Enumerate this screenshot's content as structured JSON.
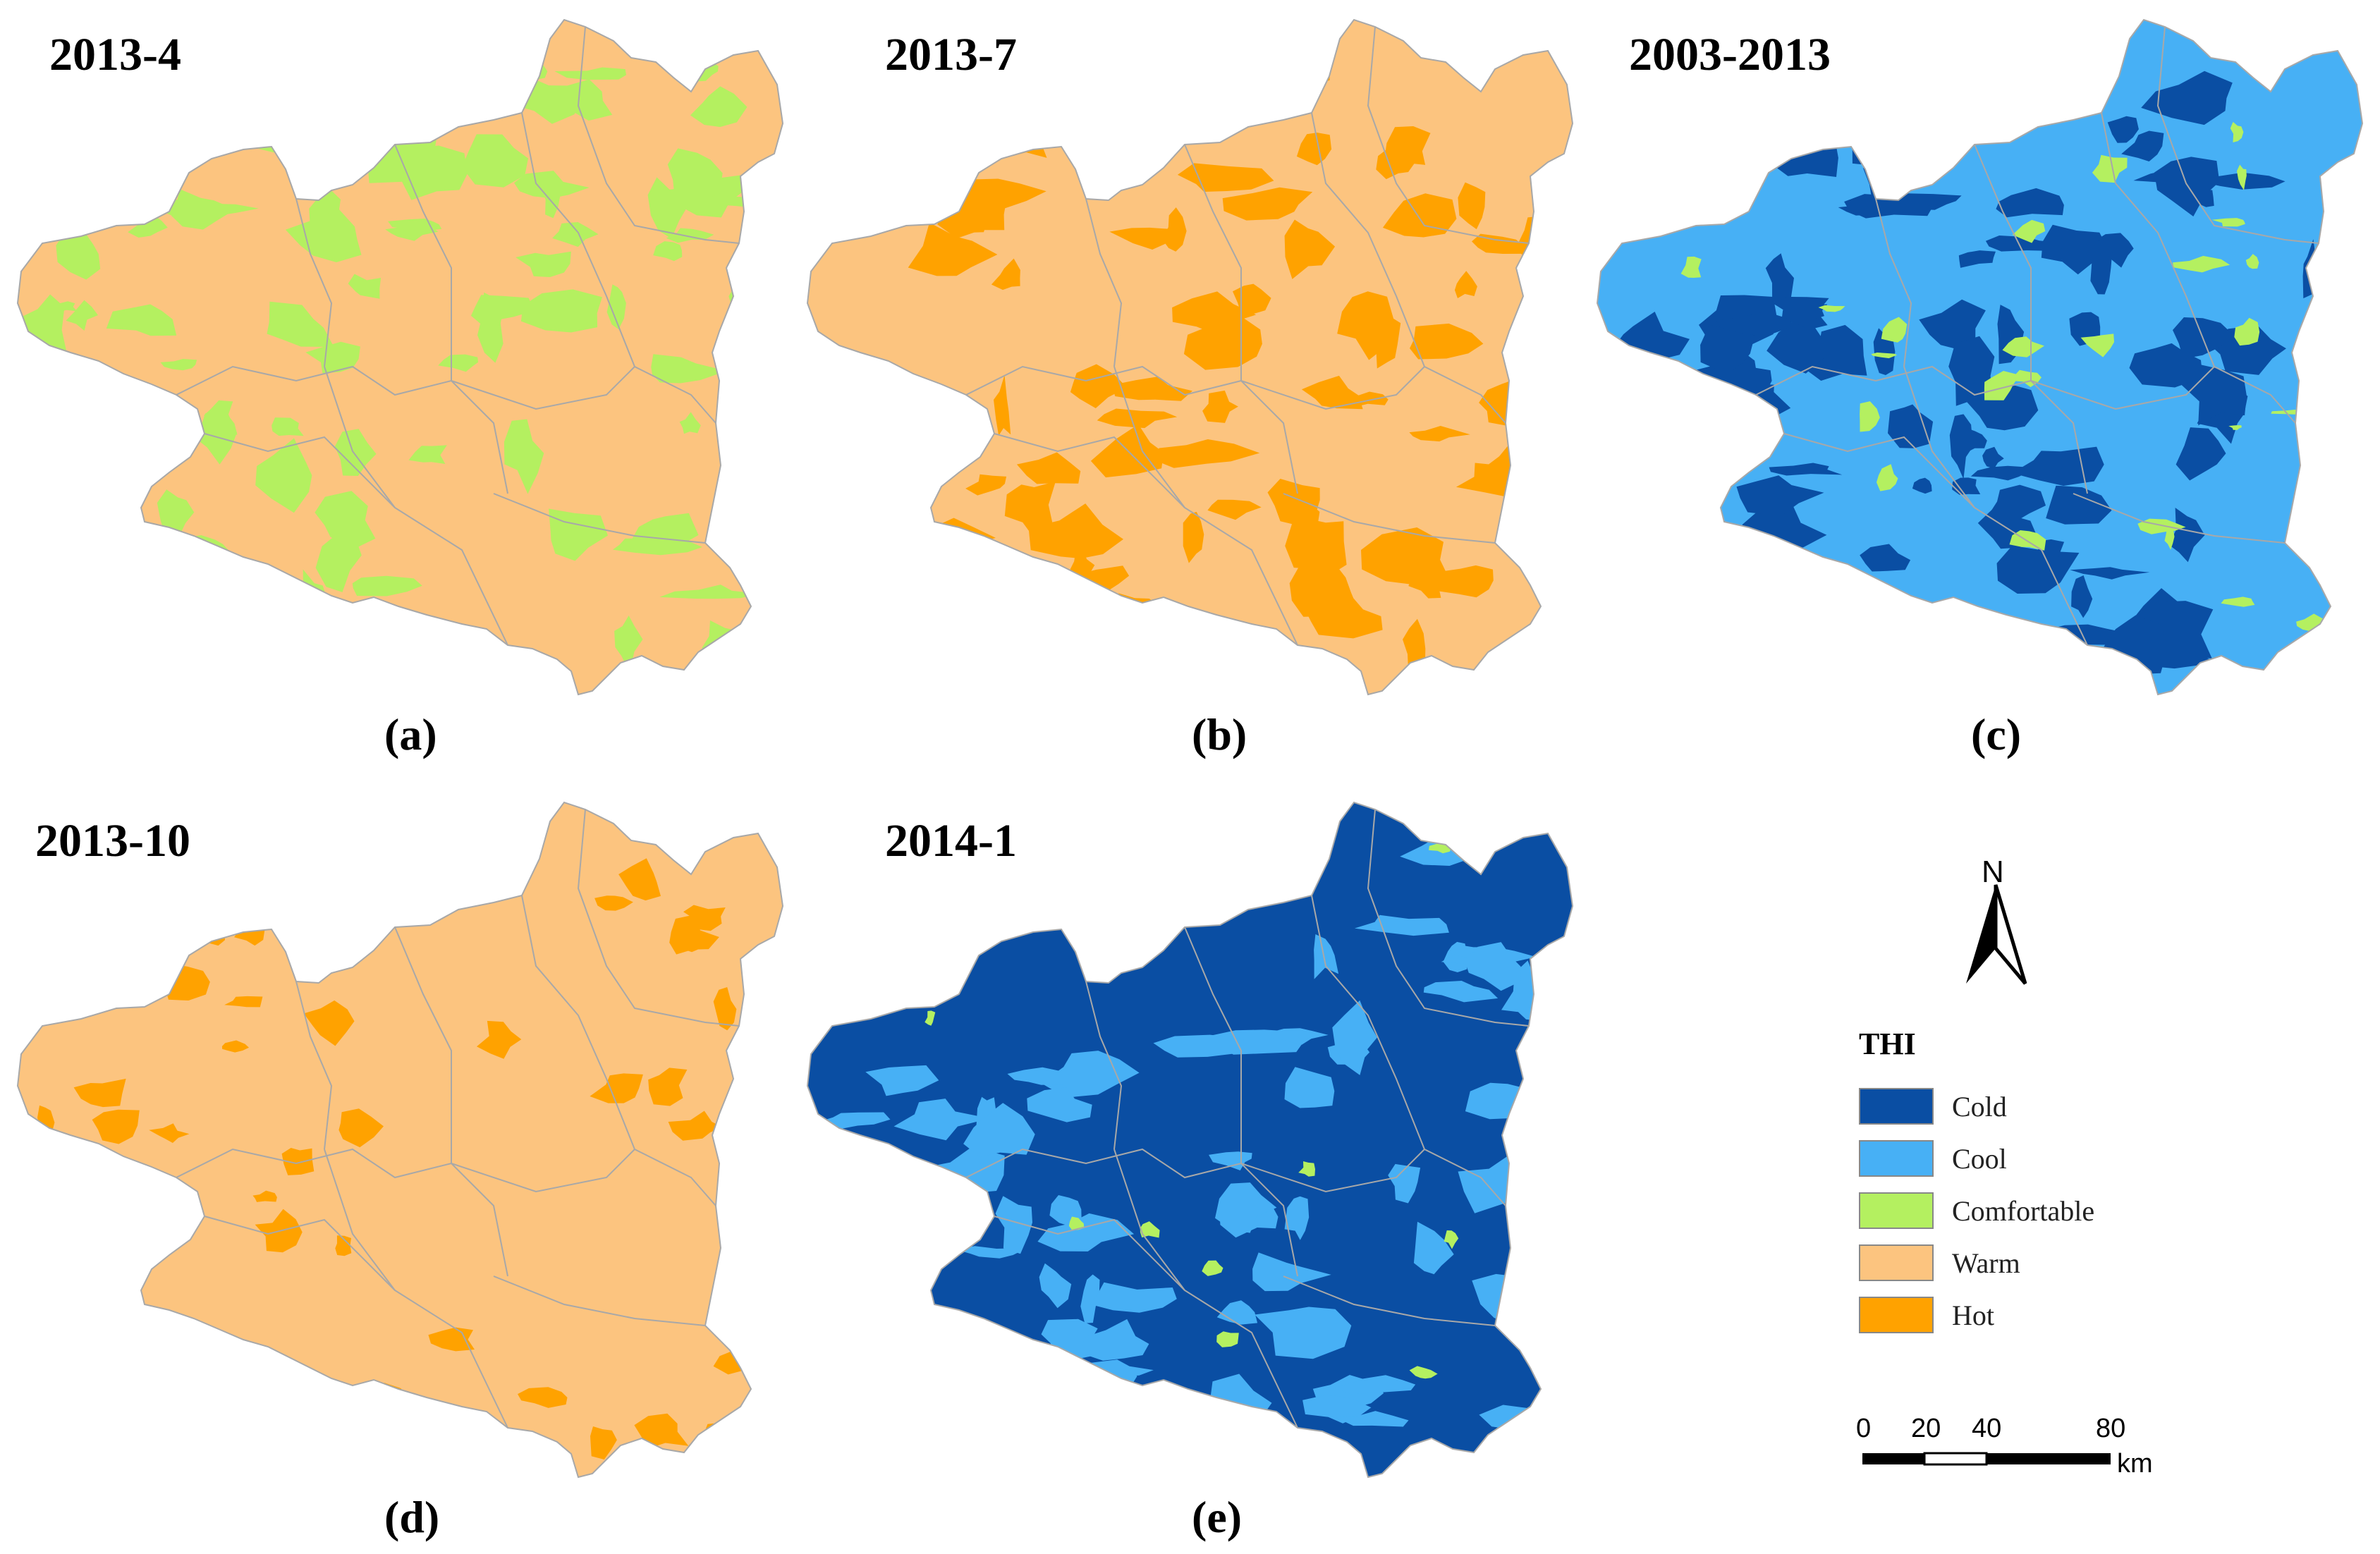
{
  "panels": [
    {
      "title": "2013-4",
      "label": "(a)",
      "base": "warm",
      "patches": "comfortable",
      "secondary": null
    },
    {
      "title": "2013-7",
      "label": "(b)",
      "base": "warm",
      "patches": "hot",
      "secondary": null
    },
    {
      "title": "2003-2013",
      "label": "(c)",
      "base": "cool",
      "patches": "cold",
      "secondary": "comfortable"
    },
    {
      "title": "2013-10",
      "label": "(d)",
      "base": "warm",
      "patches": "hot",
      "secondary": null
    },
    {
      "title": "2014-1",
      "label": "(e)",
      "base": "cold",
      "patches": "cool",
      "secondary": "comfortable"
    }
  ],
  "north_arrow": {
    "letter": "N"
  },
  "legend": {
    "title": "THI",
    "items": [
      {
        "key": "cold",
        "label": "Cold",
        "color": "#0a4ea3"
      },
      {
        "key": "cool",
        "label": "Cool",
        "color": "#47b0f5"
      },
      {
        "key": "comfortable",
        "label": "Comfortable",
        "color": "#b4f060"
      },
      {
        "key": "warm",
        "label": "Warm",
        "color": "#fcc47f"
      },
      {
        "key": "hot",
        "label": "Hot",
        "color": "#ffa200"
      }
    ]
  },
  "scale_bar": {
    "ticks": [
      "0",
      "20",
      "40",
      "80"
    ],
    "unit": "km"
  },
  "colors": {
    "boundary": "#a8a8a8"
  }
}
